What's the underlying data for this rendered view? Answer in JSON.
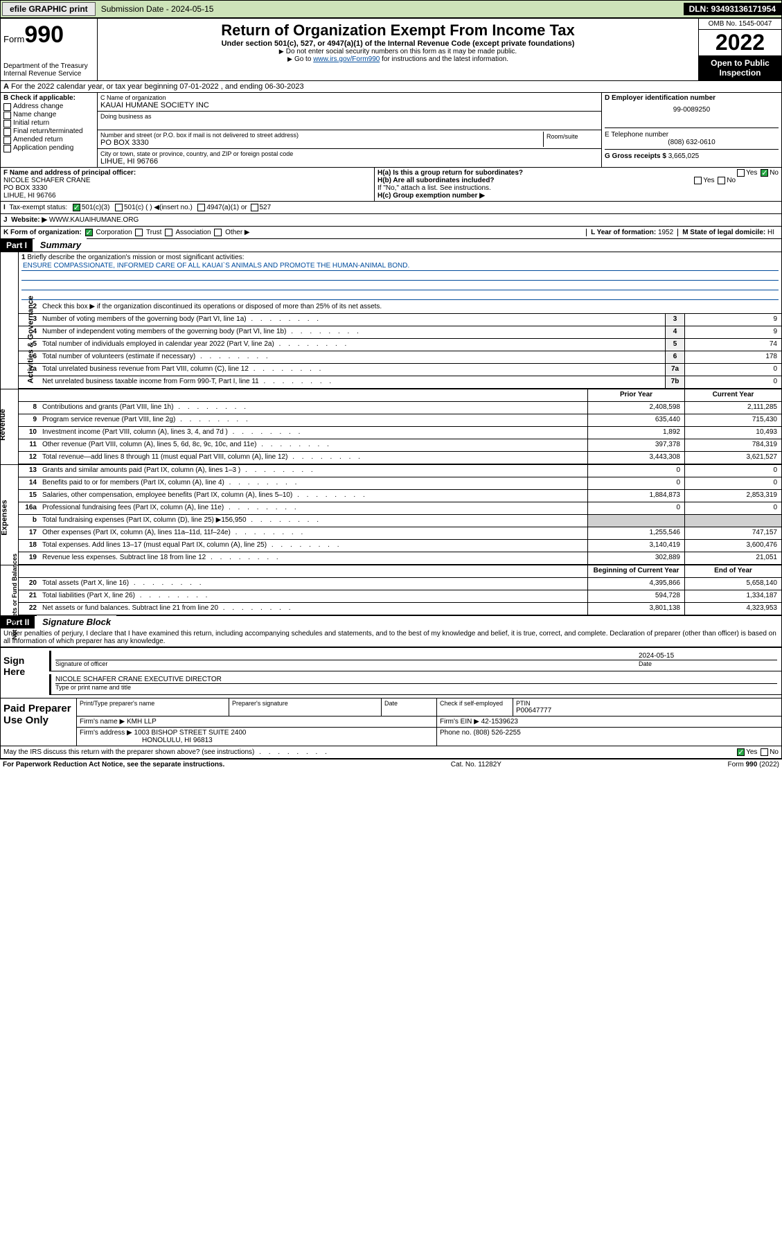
{
  "topbar": {
    "efile": "efile GRAPHIC print",
    "submission": "Submission Date - 2024-05-15",
    "dln": "DLN: 93493136171954"
  },
  "header": {
    "form_label": "Form",
    "form_no": "990",
    "dept1": "Department of the Treasury",
    "dept2": "Internal Revenue Service",
    "title": "Return of Organization Exempt From Income Tax",
    "section": "Under section 501(c), 527, or 4947(a)(1) of the Internal Revenue Code (except private foundations)",
    "note1": "Do not enter social security numbers on this form as it may be made public.",
    "note2": "Go to ",
    "note2_link": "www.irs.gov/Form990",
    "note2_rest": " for instructions and the latest information.",
    "omb": "OMB No. 1545-0047",
    "year": "2022",
    "open": "Open to Public Inspection"
  },
  "rowA": "For the 2022 calendar year, or tax year beginning 07-01-2022   , and ending 06-30-2023",
  "boxB": {
    "title": "B Check if applicable:",
    "opts": [
      "Address change",
      "Name change",
      "Initial return",
      "Final return/terminated",
      "Amended return",
      "Application pending"
    ]
  },
  "boxC": {
    "lbl_name": "C Name of organization",
    "name": "KAUAI HUMANE SOCIETY INC",
    "dba_lbl": "Doing business as",
    "addr_lbl": "Number and street (or P.O. box if mail is not delivered to street address)",
    "room_lbl": "Room/suite",
    "addr": "PO BOX 3330",
    "city_lbl": "City or town, state or province, country, and ZIP or foreign postal code",
    "city": "LIHUE, HI  96766"
  },
  "boxD": {
    "lbl": "D Employer identification number",
    "val": "99-0089250"
  },
  "boxE": {
    "lbl": "E Telephone number",
    "val": "(808) 632-0610"
  },
  "boxG": {
    "lbl": "G Gross receipts $",
    "val": "3,665,025"
  },
  "boxF": {
    "lbl": "F Name and address of principal officer:",
    "name": "NICOLE SCHAFER CRANE",
    "addr1": "PO BOX 3330",
    "addr2": "LIHUE, HI  96766"
  },
  "boxH": {
    "a": "H(a)  Is this a group return for subordinates?",
    "b": "H(b)  Are all subordinates included?",
    "b_note": "If \"No,\" attach a list. See instructions.",
    "c": "H(c)  Group exemption number ▶"
  },
  "boxI": {
    "lbl": "Tax-exempt status:",
    "o1": "501(c)(3)",
    "o2": "501(c) (  ) ◀(insert no.)",
    "o3": "4947(a)(1) or",
    "o4": "527"
  },
  "boxJ": {
    "lbl": "Website: ▶",
    "val": "WWW.KAUAIHUMANE.ORG"
  },
  "boxK": {
    "lbl": "K Form of organization:",
    "opts": [
      "Corporation",
      "Trust",
      "Association",
      "Other ▶"
    ]
  },
  "boxL": {
    "lbl": "L Year of formation:",
    "val": "1952"
  },
  "boxM": {
    "lbl": "M State of legal domicile:",
    "val": "HI"
  },
  "part1": {
    "hdr": "Part I",
    "title": "Summary",
    "q1": "Briefly describe the organization's mission or most significant activities:",
    "mission": "ENSURE COMPASSIONATE, INFORMED CARE OF ALL KAUAI`S ANIMALS AND PROMOTE THE HUMAN-ANIMAL BOND.",
    "q2": "Check this box ▶       if the organization discontinued its operations or disposed of more than 25% of its net assets.",
    "lines_gov": [
      {
        "n": "3",
        "d": "Number of voting members of the governing body (Part VI, line 1a)",
        "b": "3",
        "v": "9"
      },
      {
        "n": "4",
        "d": "Number of independent voting members of the governing body (Part VI, line 1b)",
        "b": "4",
        "v": "9"
      },
      {
        "n": "5",
        "d": "Total number of individuals employed in calendar year 2022 (Part V, line 2a)",
        "b": "5",
        "v": "74"
      },
      {
        "n": "6",
        "d": "Total number of volunteers (estimate if necessary)",
        "b": "6",
        "v": "178"
      },
      {
        "n": "7a",
        "d": "Total unrelated business revenue from Part VIII, column (C), line 12",
        "b": "7a",
        "v": "0"
      },
      {
        "n": "",
        "d": "Net unrelated business taxable income from Form 990-T, Part I, line 11",
        "b": "7b",
        "v": "0"
      }
    ],
    "col_prior": "Prior Year",
    "col_curr": "Current Year",
    "lines_rev": [
      {
        "n": "8",
        "d": "Contributions and grants (Part VIII, line 1h)",
        "p": "2,408,598",
        "c": "2,111,285"
      },
      {
        "n": "9",
        "d": "Program service revenue (Part VIII, line 2g)",
        "p": "635,440",
        "c": "715,430"
      },
      {
        "n": "10",
        "d": "Investment income (Part VIII, column (A), lines 3, 4, and 7d )",
        "p": "1,892",
        "c": "10,493"
      },
      {
        "n": "11",
        "d": "Other revenue (Part VIII, column (A), lines 5, 6d, 8c, 9c, 10c, and 11e)",
        "p": "397,378",
        "c": "784,319"
      },
      {
        "n": "12",
        "d": "Total revenue—add lines 8 through 11 (must equal Part VIII, column (A), line 12)",
        "p": "3,443,308",
        "c": "3,621,527"
      }
    ],
    "lines_exp": [
      {
        "n": "13",
        "d": "Grants and similar amounts paid (Part IX, column (A), lines 1–3 )",
        "p": "0",
        "c": "0"
      },
      {
        "n": "14",
        "d": "Benefits paid to or for members (Part IX, column (A), line 4)",
        "p": "0",
        "c": "0"
      },
      {
        "n": "15",
        "d": "Salaries, other compensation, employee benefits (Part IX, column (A), lines 5–10)",
        "p": "1,884,873",
        "c": "2,853,319"
      },
      {
        "n": "16a",
        "d": "Professional fundraising fees (Part IX, column (A), line 11e)",
        "p": "0",
        "c": "0"
      },
      {
        "n": "b",
        "d": "Total fundraising expenses (Part IX, column (D), line 25) ▶156,950",
        "p": "",
        "c": "",
        "shade": true
      },
      {
        "n": "17",
        "d": "Other expenses (Part IX, column (A), lines 11a–11d, 11f–24e)",
        "p": "1,255,546",
        "c": "747,157"
      },
      {
        "n": "18",
        "d": "Total expenses. Add lines 13–17 (must equal Part IX, column (A), line 25)",
        "p": "3,140,419",
        "c": "3,600,476"
      },
      {
        "n": "19",
        "d": "Revenue less expenses. Subtract line 18 from line 12",
        "p": "302,889",
        "c": "21,051"
      }
    ],
    "col_beg": "Beginning of Current Year",
    "col_end": "End of Year",
    "lines_net": [
      {
        "n": "20",
        "d": "Total assets (Part X, line 16)",
        "p": "4,395,866",
        "c": "5,658,140"
      },
      {
        "n": "21",
        "d": "Total liabilities (Part X, line 26)",
        "p": "594,728",
        "c": "1,334,187"
      },
      {
        "n": "22",
        "d": "Net assets or fund balances. Subtract line 21 from line 20",
        "p": "3,801,138",
        "c": "4,323,953"
      }
    ]
  },
  "part2": {
    "hdr": "Part II",
    "title": "Signature Block",
    "decl": "Under penalties of perjury, I declare that I have examined this return, including accompanying schedules and statements, and to the best of my knowledge and belief, it is true, correct, and complete. Declaration of preparer (other than officer) is based on all information of which preparer has any knowledge."
  },
  "sign": {
    "lbl": "Sign Here",
    "sig_lbl": "Signature of officer",
    "date": "2024-05-15",
    "date_lbl": "Date",
    "name": "NICOLE SCHAFER CRANE  EXECUTIVE DIRECTOR",
    "name_lbl": "Type or print name and title"
  },
  "paid": {
    "lbl": "Paid Preparer Use Only",
    "h1": "Print/Type preparer's name",
    "h2": "Preparer's signature",
    "h3": "Date",
    "h4": "Check        if self-employed",
    "h5": "PTIN",
    "ptin": "P00647777",
    "firm_lbl": "Firm's name    ▶",
    "firm": "KMH LLP",
    "ein_lbl": "Firm's EIN ▶",
    "ein": "42-1539623",
    "addr_lbl": "Firm's address ▶",
    "addr1": "1003 BISHOP STREET SUITE 2400",
    "addr2": "HONOLULU, HI  96813",
    "phone_lbl": "Phone no.",
    "phone": "(808) 526-2255"
  },
  "discuss": "May the IRS discuss this return with the preparer shown above? (see instructions)",
  "footer": {
    "l": "For Paperwork Reduction Act Notice, see the separate instructions.",
    "m": "Cat. No. 11282Y",
    "r": "Form 990 (2022)"
  },
  "vtabs": {
    "gov": "Activities & Governance",
    "rev": "Revenue",
    "exp": "Expenses",
    "net": "Net Assets or Fund Balances"
  }
}
